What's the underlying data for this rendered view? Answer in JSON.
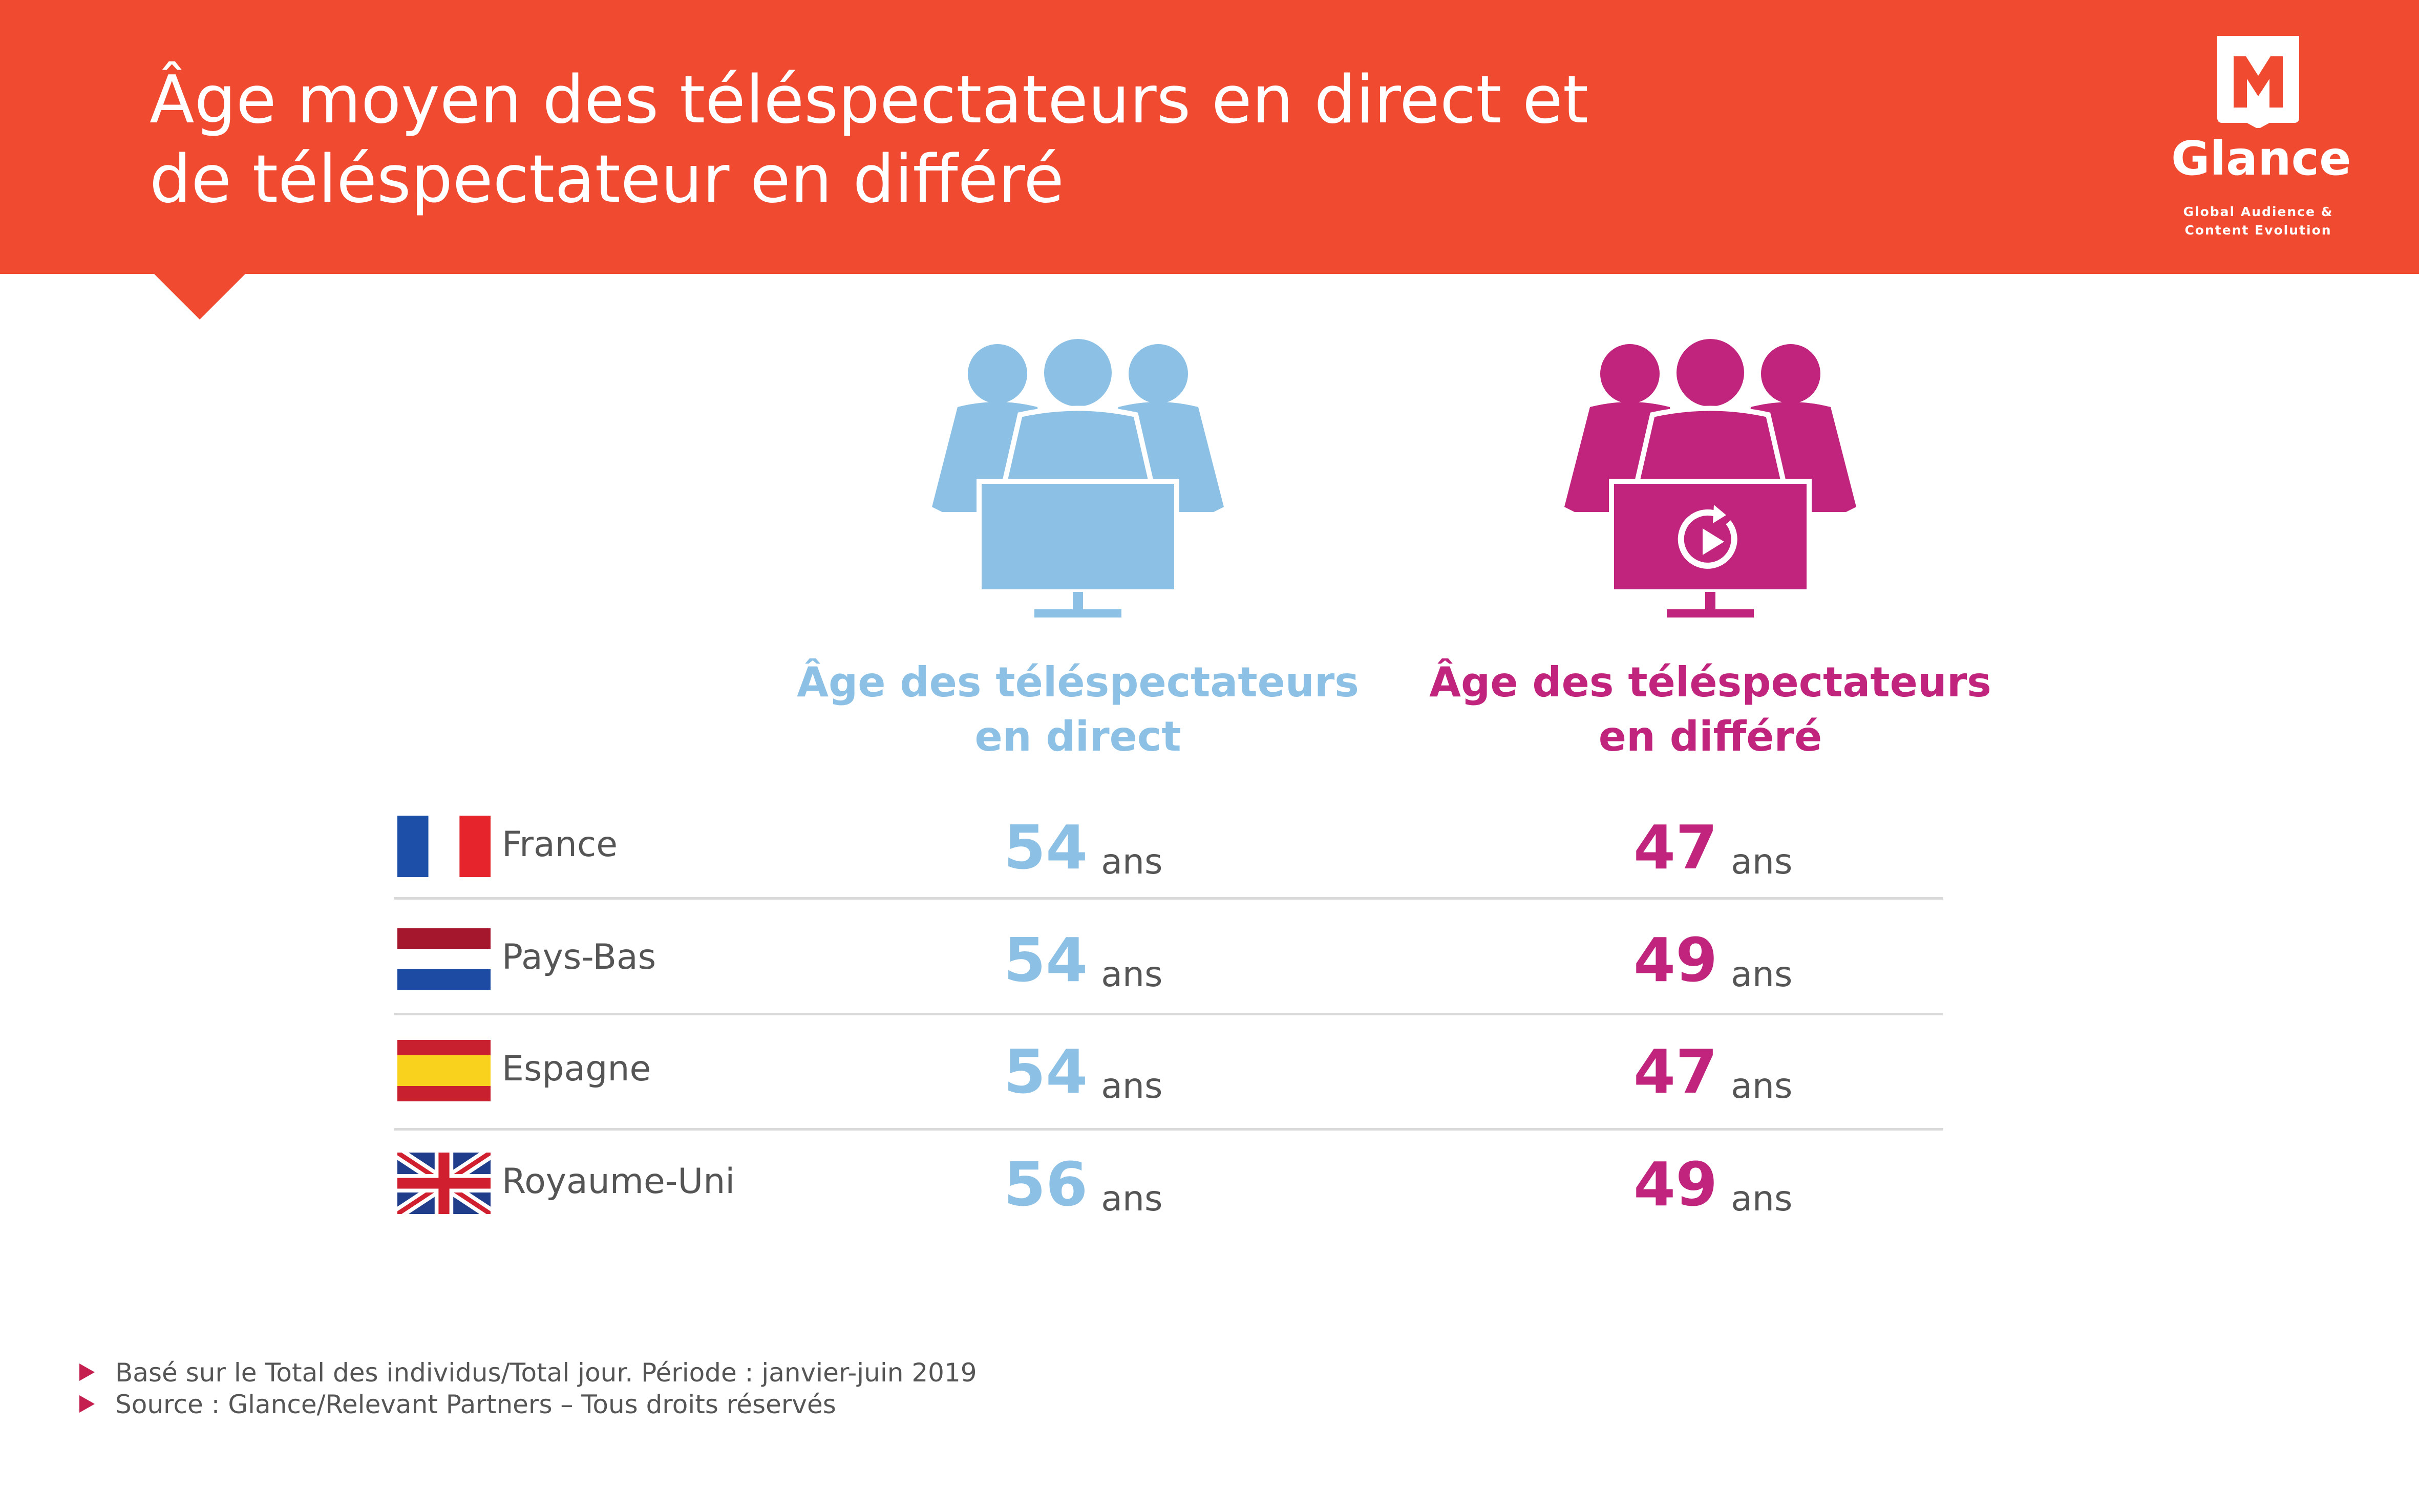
{
  "header": {
    "title_line1": "Âge moyen des téléspectateurs en direct et",
    "title_line2": "de téléspectateur en différé"
  },
  "logo": {
    "name": "Glance",
    "tagline_line1": "Global Audience &",
    "tagline_line2": "Content Evolution"
  },
  "colors": {
    "header": "#f04b31",
    "live": "#8cc0e4",
    "deferred": "#c0247c",
    "bullet": "#c41f4f"
  },
  "columns": {
    "live": {
      "line1": "Âge des téléspectateurs",
      "line2": "en direct",
      "icon": "audience-tv-icon"
    },
    "deferred": {
      "line1": "Âge des téléspectateurs",
      "line2": "en différé",
      "icon": "audience-replay-tv-icon"
    }
  },
  "unit": "ans",
  "rows": [
    {
      "country": "France",
      "flag": "france-flag-icon",
      "live": "54",
      "deferred": "47"
    },
    {
      "country": "Pays-Bas",
      "flag": "netherlands-flag-icon",
      "live": "54",
      "deferred": "49"
    },
    {
      "country": "Espagne",
      "flag": "spain-flag-icon",
      "live": "54",
      "deferred": "47"
    },
    {
      "country": "Royaume-Uni",
      "flag": "uk-flag-icon",
      "live": "56",
      "deferred": "49"
    }
  ],
  "notes": [
    "Basé sur le Total des individus/Total jour. Période : janvier-juin 2019",
    "Source : Glance/Relevant Partners – Tous droits réservés"
  ]
}
